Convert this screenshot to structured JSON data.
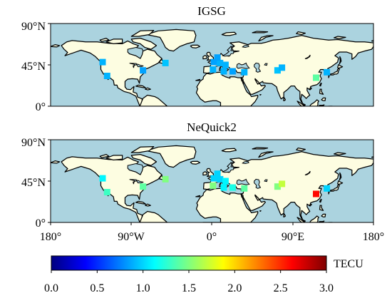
{
  "panels": [
    {
      "title": "IGSG",
      "stations": [
        {
          "lon": -122,
          "lat": 48,
          "value": 0.9
        },
        {
          "lon": -117,
          "lat": 33,
          "value": 0.9
        },
        {
          "lon": -77,
          "lat": 39,
          "value": 0.85
        },
        {
          "lon": -52,
          "lat": 47,
          "value": 0.95
        },
        {
          "lon": 2,
          "lat": 48,
          "value": 0.85
        },
        {
          "lon": 9,
          "lat": 47,
          "value": 0.9
        },
        {
          "lon": 1,
          "lat": 40,
          "value": 0.9
        },
        {
          "lon": 6,
          "lat": 53,
          "value": 0.85
        },
        {
          "lon": 15,
          "lat": 45,
          "value": 0.9
        },
        {
          "lon": 13,
          "lat": 38,
          "value": 0.9
        },
        {
          "lon": 23,
          "lat": 38,
          "value": 0.85
        },
        {
          "lon": 36,
          "lat": 37,
          "value": 0.9
        },
        {
          "lon": 73,
          "lat": 39,
          "value": 0.95
        },
        {
          "lon": 78,
          "lat": 42,
          "value": 0.9
        },
        {
          "lon": 116,
          "lat": 31,
          "value": 1.4
        },
        {
          "lon": 128,
          "lat": 37,
          "value": 0.9
        }
      ]
    },
    {
      "title": "NeQuick2",
      "stations": [
        {
          "lon": -122,
          "lat": 48,
          "value": 1.1
        },
        {
          "lon": -117,
          "lat": 33,
          "value": 1.3
        },
        {
          "lon": -77,
          "lat": 39,
          "value": 1.4
        },
        {
          "lon": -52,
          "lat": 47,
          "value": 1.5
        },
        {
          "lon": 2,
          "lat": 48,
          "value": 1.0
        },
        {
          "lon": 9,
          "lat": 47,
          "value": 1.0
        },
        {
          "lon": 1,
          "lat": 40,
          "value": 1.5
        },
        {
          "lon": 6,
          "lat": 53,
          "value": 1.0
        },
        {
          "lon": 15,
          "lat": 45,
          "value": 1.1
        },
        {
          "lon": 13,
          "lat": 38,
          "value": 1.1
        },
        {
          "lon": 23,
          "lat": 38,
          "value": 1.2
        },
        {
          "lon": 36,
          "lat": 37,
          "value": 1.4
        },
        {
          "lon": 73,
          "lat": 39,
          "value": 1.5
        },
        {
          "lon": 78,
          "lat": 42,
          "value": 1.7
        },
        {
          "lon": 116,
          "lat": 31,
          "value": 2.6
        },
        {
          "lon": 128,
          "lat": 37,
          "value": 1.0
        }
      ]
    }
  ],
  "extent": {
    "lon": [
      -180,
      180
    ],
    "lat": [
      0,
      90
    ]
  },
  "lat_ticks": [
    "0°",
    "45°N",
    "90°N"
  ],
  "lat_tick_values": [
    0,
    45,
    90
  ],
  "lon_ticks": [
    "180°",
    "90°W",
    "0°",
    "90°E",
    "180°"
  ],
  "lon_tick_values": [
    -180,
    -90,
    0,
    90,
    180
  ],
  "colorbar": {
    "label": "TECU",
    "min": 0,
    "max": 3,
    "ticks": [
      "0.0",
      "0.5",
      "1.0",
      "1.5",
      "2.0",
      "2.5",
      "3.0"
    ],
    "tick_values": [
      0,
      0.5,
      1,
      1.5,
      2,
      2.5,
      3
    ],
    "colormap": "jet"
  },
  "colors": {
    "ocean": "#abd3df",
    "land": "#fdfde1",
    "coast": "#000000"
  }
}
